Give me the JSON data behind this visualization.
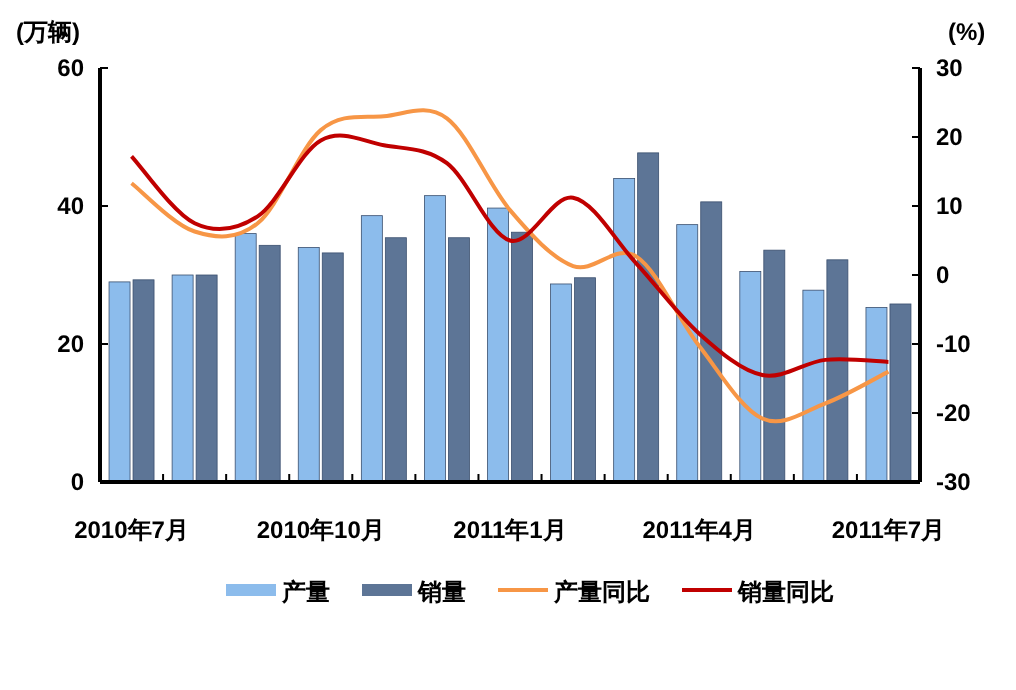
{
  "chart_data": {
    "type": "bar",
    "categories": [
      "2010年7月",
      null,
      null,
      "2010年10月",
      null,
      null,
      "2011年1月",
      null,
      null,
      "2011年4月",
      null,
      null,
      "2011年7月"
    ],
    "ylabel": "(万辆)",
    "y2label": "(%)",
    "ylim": [
      0,
      60
    ],
    "yticks": [
      0,
      20,
      40,
      60
    ],
    "y2lim": [
      -30,
      30
    ],
    "y2ticks": [
      -30,
      -20,
      -10,
      0,
      10,
      20,
      30
    ],
    "grid": false,
    "legend": "bottom",
    "series": [
      {
        "name": "产量",
        "color": "#8cbcec",
        "values": [
          29,
          30,
          36,
          34,
          38.6,
          41.5,
          39.7,
          28.7,
          44,
          37.3,
          30.5,
          27.8,
          25.3
        ]
      },
      {
        "name": "销量",
        "color": "#5d7596",
        "values": [
          29.3,
          30,
          34.3,
          33.2,
          35.4,
          35.4,
          36.2,
          29.6,
          47.7,
          40.6,
          33.6,
          32.2,
          25.8
        ]
      },
      {
        "name": "产量同比",
        "type": "line",
        "axis": "y2",
        "color": "#f79646",
        "values": [
          13.3,
          6.3,
          7.5,
          21,
          23,
          22.7,
          9.4,
          1.3,
          2.7,
          -10.3,
          -20.8,
          -18.6,
          -14
        ]
      },
      {
        "name": "销量同比",
        "type": "line",
        "axis": "y2",
        "color": "#c00000",
        "values": [
          17.2,
          7.5,
          8.5,
          19.5,
          18.8,
          16.2,
          5,
          11.2,
          1.7,
          -8.5,
          -14.5,
          -12.3,
          -12.6
        ]
      }
    ]
  }
}
